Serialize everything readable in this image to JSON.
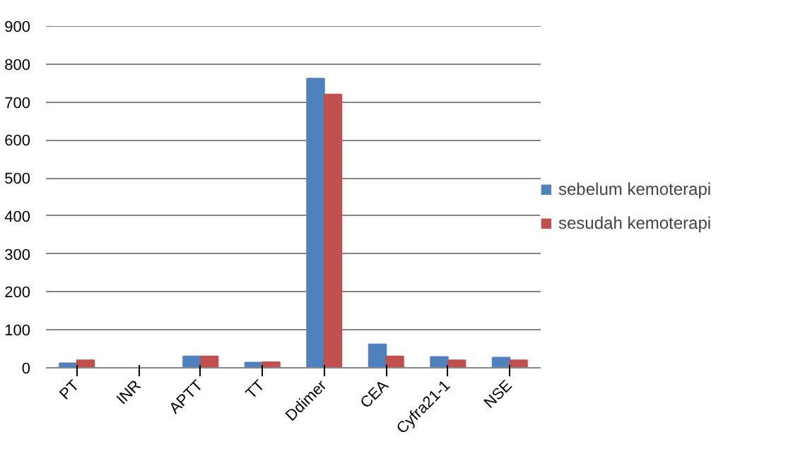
{
  "chart_data": {
    "type": "bar",
    "categories": [
      "PT",
      "INR",
      "APTT",
      "TT",
      "Ddimer",
      "CEA",
      "Cyfra21-1",
      "NSE"
    ],
    "series": [
      {
        "name": "sebelum kemoterapi",
        "color": "#4f81bd",
        "values": [
          12,
          null,
          30,
          14,
          762,
          62,
          29,
          27
        ]
      },
      {
        "name": "sesudah kemoterapi",
        "color": "#c0504d",
        "values": [
          20,
          null,
          30,
          15,
          720,
          30,
          20,
          20
        ]
      }
    ],
    "ylim": [
      0,
      900
    ],
    "yticks": [
      0,
      100,
      200,
      300,
      400,
      500,
      600,
      700,
      800,
      900
    ],
    "grid": "y",
    "legend": "right"
  }
}
